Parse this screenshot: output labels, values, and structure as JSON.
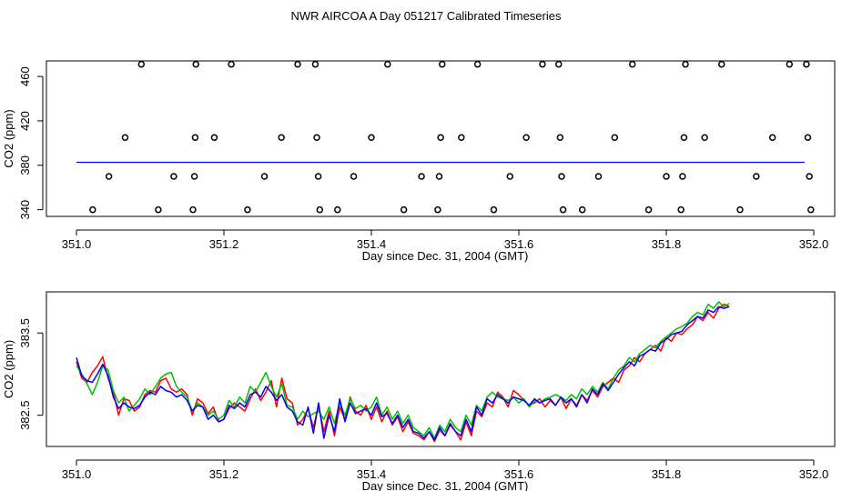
{
  "title": "NWR AIRCOA A  Day 051217  Calibrated Timeseries",
  "chart_data": [
    {
      "type": "scatter",
      "title": "",
      "xlabel": "Day since Dec. 31, 2004 (GMT)",
      "ylabel": "CO2 (ppm)",
      "xlim": [
        351.0,
        352.0
      ],
      "ylim": [
        334,
        474
      ],
      "xticks": [
        351.0,
        351.2,
        351.4,
        351.6,
        351.8,
        352.0
      ],
      "xtick_labels": [
        "351.0",
        "351.2",
        "351.4",
        "351.6",
        "351.8",
        "352.0"
      ],
      "yticks": [
        340,
        380,
        420,
        460
      ],
      "ytick_labels": [
        "340",
        "380",
        "420",
        "460"
      ],
      "grid": false,
      "line_level": 382.7,
      "line_color": "#0000ff",
      "point_color": "#000000",
      "points": [
        {
          "x": 351.022,
          "y": 340
        },
        {
          "x": 351.044,
          "y": 370
        },
        {
          "x": 351.066,
          "y": 405
        },
        {
          "x": 351.088,
          "y": 471
        },
        {
          "x": 351.111,
          "y": 340
        },
        {
          "x": 351.132,
          "y": 370
        },
        {
          "x": 351.158,
          "y": 340
        },
        {
          "x": 351.16,
          "y": 370
        },
        {
          "x": 351.161,
          "y": 405
        },
        {
          "x": 351.162,
          "y": 471
        },
        {
          "x": 351.187,
          "y": 405
        },
        {
          "x": 351.21,
          "y": 471
        },
        {
          "x": 351.232,
          "y": 340
        },
        {
          "x": 351.255,
          "y": 370
        },
        {
          "x": 351.278,
          "y": 405
        },
        {
          "x": 351.3,
          "y": 471
        },
        {
          "x": 351.324,
          "y": 471
        },
        {
          "x": 351.326,
          "y": 405
        },
        {
          "x": 351.328,
          "y": 370
        },
        {
          "x": 351.33,
          "y": 340
        },
        {
          "x": 351.354,
          "y": 340
        },
        {
          "x": 351.376,
          "y": 370
        },
        {
          "x": 351.4,
          "y": 405
        },
        {
          "x": 351.422,
          "y": 471
        },
        {
          "x": 351.444,
          "y": 340
        },
        {
          "x": 351.468,
          "y": 370
        },
        {
          "x": 351.49,
          "y": 340
        },
        {
          "x": 351.492,
          "y": 370
        },
        {
          "x": 351.494,
          "y": 405
        },
        {
          "x": 351.496,
          "y": 471
        },
        {
          "x": 351.522,
          "y": 405
        },
        {
          "x": 351.544,
          "y": 471
        },
        {
          "x": 351.566,
          "y": 340
        },
        {
          "x": 351.588,
          "y": 370
        },
        {
          "x": 351.61,
          "y": 405
        },
        {
          "x": 351.632,
          "y": 471
        },
        {
          "x": 351.654,
          "y": 471
        },
        {
          "x": 351.656,
          "y": 405
        },
        {
          "x": 351.658,
          "y": 370
        },
        {
          "x": 351.66,
          "y": 340
        },
        {
          "x": 351.686,
          "y": 340
        },
        {
          "x": 351.708,
          "y": 370
        },
        {
          "x": 351.73,
          "y": 405
        },
        {
          "x": 351.754,
          "y": 471
        },
        {
          "x": 351.776,
          "y": 340
        },
        {
          "x": 351.8,
          "y": 370
        },
        {
          "x": 351.82,
          "y": 340
        },
        {
          "x": 351.822,
          "y": 370
        },
        {
          "x": 351.824,
          "y": 405
        },
        {
          "x": 351.826,
          "y": 471
        },
        {
          "x": 351.852,
          "y": 405
        },
        {
          "x": 351.875,
          "y": 471
        },
        {
          "x": 351.9,
          "y": 340
        },
        {
          "x": 351.922,
          "y": 370
        },
        {
          "x": 351.944,
          "y": 405
        },
        {
          "x": 351.967,
          "y": 471
        },
        {
          "x": 351.99,
          "y": 471
        },
        {
          "x": 351.992,
          "y": 405
        },
        {
          "x": 351.994,
          "y": 370
        },
        {
          "x": 351.996,
          "y": 340
        }
      ]
    },
    {
      "type": "line",
      "title": "",
      "xlabel": "Day since Dec. 31, 2004 (GMT)",
      "ylabel": "CO2 (ppm)",
      "xlim": [
        351.0,
        352.0
      ],
      "ylim": [
        382.12,
        384.0
      ],
      "xticks": [
        351.0,
        351.2,
        351.4,
        351.6,
        351.8,
        352.0
      ],
      "xtick_labels": [
        "351.0",
        "351.2",
        "351.4",
        "351.6",
        "351.8",
        "352.0"
      ],
      "yticks": [
        382.5,
        383.5
      ],
      "ytick_labels": [
        "382.5",
        "383.5"
      ],
      "grid": false,
      "x_start": 351.0,
      "x_step": 0.00714,
      "series": [
        {
          "name": "red",
          "color": "#ff0000",
          "values": [
            383.15,
            382.95,
            382.9,
            383.02,
            383.1,
            383.21,
            382.95,
            382.78,
            382.5,
            382.7,
            382.68,
            382.55,
            382.6,
            382.75,
            382.8,
            382.78,
            382.92,
            382.95,
            382.82,
            382.78,
            382.82,
            382.75,
            382.5,
            382.7,
            382.65,
            382.52,
            382.6,
            382.42,
            382.45,
            382.58,
            382.65,
            382.6,
            382.55,
            382.7,
            382.82,
            382.68,
            382.78,
            382.92,
            382.6,
            382.95,
            382.7,
            382.65,
            382.38,
            382.45,
            382.58,
            382.35,
            382.62,
            382.3,
            382.55,
            382.25,
            382.6,
            382.45,
            382.72,
            382.55,
            382.5,
            382.62,
            382.45,
            382.6,
            382.42,
            382.55,
            382.38,
            382.48,
            382.3,
            382.42,
            382.28,
            382.25,
            382.2,
            382.3,
            382.18,
            382.32,
            382.25,
            382.38,
            382.3,
            382.2,
            382.42,
            382.25,
            382.55,
            382.48,
            382.65,
            382.6,
            382.78,
            382.72,
            382.6,
            382.8,
            382.75,
            382.68,
            382.62,
            382.65,
            382.7,
            382.6,
            382.68,
            382.62,
            382.72,
            382.58,
            382.7,
            382.62,
            382.75,
            382.68,
            382.8,
            382.72,
            382.85,
            382.9,
            382.95,
            382.9,
            383.05,
            383.1,
            383.2,
            383.15,
            383.25,
            383.3,
            383.35,
            383.28,
            383.45,
            383.4,
            383.5,
            383.48,
            383.55,
            383.6,
            383.7,
            383.65,
            383.75,
            383.68,
            383.8,
            383.85,
            383.82
          ]
        },
        {
          "name": "green",
          "color": "#00c000",
          "values": [
            383.1,
            383.0,
            382.88,
            382.75,
            382.9,
            383.1,
            383.05,
            382.8,
            382.65,
            382.72,
            382.55,
            382.62,
            382.7,
            382.82,
            382.75,
            382.85,
            382.95,
            383.0,
            383.02,
            382.85,
            382.78,
            382.72,
            382.55,
            382.65,
            382.6,
            382.5,
            382.55,
            382.45,
            382.5,
            382.68,
            382.6,
            382.72,
            382.65,
            382.85,
            382.78,
            382.9,
            383.02,
            382.85,
            382.72,
            382.88,
            382.62,
            382.6,
            382.45,
            382.55,
            382.48,
            382.52,
            382.55,
            382.45,
            382.6,
            382.4,
            382.65,
            382.5,
            382.7,
            382.58,
            382.62,
            382.55,
            382.6,
            382.72,
            382.5,
            382.6,
            382.45,
            382.55,
            382.4,
            382.5,
            382.35,
            382.3,
            382.25,
            382.35,
            382.22,
            382.38,
            382.3,
            382.45,
            382.35,
            382.3,
            382.5,
            382.38,
            382.62,
            382.55,
            382.72,
            382.78,
            382.72,
            382.7,
            382.68,
            382.72,
            382.65,
            382.7,
            382.6,
            382.68,
            382.65,
            382.7,
            382.72,
            382.75,
            382.72,
            382.68,
            382.75,
            382.7,
            382.82,
            382.75,
            382.85,
            382.78,
            382.9,
            382.82,
            382.95,
            383.05,
            383.1,
            383.2,
            383.15,
            383.25,
            383.3,
            383.35,
            383.32,
            383.4,
            383.45,
            383.5,
            383.55,
            383.58,
            383.62,
            383.7,
            383.75,
            383.72,
            383.85,
            383.8,
            383.88,
            383.82,
            383.86
          ]
        },
        {
          "name": "blue",
          "color": "#0000ff",
          "values": [
            383.2,
            382.98,
            382.92,
            382.9,
            383.0,
            383.12,
            382.98,
            382.72,
            382.58,
            382.65,
            382.6,
            382.58,
            382.62,
            382.72,
            382.78,
            382.75,
            382.85,
            382.8,
            382.78,
            382.72,
            382.75,
            382.68,
            382.55,
            382.62,
            382.6,
            382.45,
            382.5,
            382.42,
            382.45,
            382.62,
            382.58,
            382.65,
            382.6,
            382.75,
            382.78,
            382.72,
            382.85,
            382.78,
            382.68,
            382.75,
            382.6,
            382.55,
            382.42,
            382.38,
            382.6,
            382.28,
            382.65,
            382.22,
            382.5,
            382.3,
            382.7,
            382.42,
            382.65,
            382.52,
            382.55,
            382.58,
            382.5,
            382.65,
            382.48,
            382.52,
            382.4,
            382.5,
            382.35,
            382.45,
            382.3,
            382.28,
            382.22,
            382.3,
            382.2,
            382.35,
            382.25,
            382.4,
            382.3,
            382.25,
            382.45,
            382.3,
            382.6,
            382.5,
            382.7,
            382.65,
            382.75,
            382.7,
            382.65,
            382.72,
            382.7,
            382.68,
            382.62,
            382.7,
            382.65,
            382.68,
            382.7,
            382.62,
            382.72,
            382.65,
            382.7,
            382.6,
            382.75,
            382.65,
            382.82,
            382.75,
            382.88,
            382.8,
            382.9,
            383.0,
            383.08,
            383.15,
            383.1,
            383.22,
            383.25,
            383.3,
            383.28,
            383.38,
            383.42,
            383.48,
            383.5,
            383.52,
            383.6,
            383.65,
            383.7,
            383.68,
            383.78,
            383.75,
            383.82,
            383.8,
            383.82
          ]
        }
      ]
    }
  ]
}
